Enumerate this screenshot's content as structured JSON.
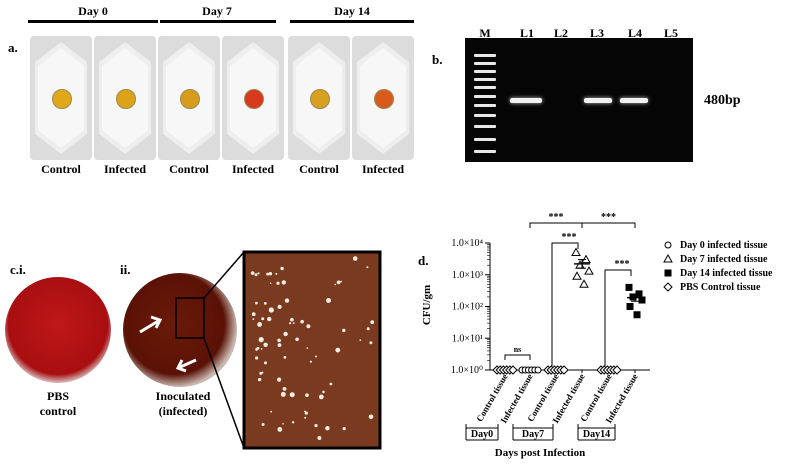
{
  "panel_a": {
    "label": "a.",
    "days": [
      "Day 0",
      "Day 7",
      "Day 14"
    ],
    "dish_labels": [
      "Control",
      "Infected",
      "Control",
      "Infected",
      "Control",
      "Infected"
    ],
    "dish_colors": [
      "#e0a818",
      "#dca21a",
      "#d89c1c",
      "#d83a20",
      "#d8a020",
      "#d85a1c"
    ]
  },
  "panel_b": {
    "label": "b.",
    "lanes": [
      "M",
      "L1",
      "L2",
      "L3",
      "L4",
      "L5"
    ],
    "size_label": "480bp"
  },
  "panel_c": {
    "label_i": "c.i.",
    "label_ii": "ii.",
    "plate1_caption": [
      "PBS",
      "control"
    ],
    "plate2_caption": [
      "Inoculated",
      "(infected)"
    ]
  },
  "panel_d": {
    "label": "d.",
    "footer_days": [
      "Day0",
      "Day7",
      "Day14"
    ],
    "xlabel_main": "Days post Infection"
  },
  "chart_data": {
    "type": "scatter",
    "ylabel": "CFU/gm",
    "yscale": "log",
    "ylim": [
      1,
      10000
    ],
    "yticks": [
      "1.0×10⁰",
      "1.0×10¹",
      "1.0×10²",
      "1.0×10³",
      "1.0×10⁴"
    ],
    "categories": [
      "Control tissue",
      "Infected tissue",
      "Control tissue",
      "Infected tissue",
      "Control tissue",
      "Infected tissue"
    ],
    "groups": [
      "Day0",
      "Day7",
      "Day14"
    ],
    "series": [
      {
        "name": "Day 0 infected tissue",
        "marker": "circle-open",
        "category_index": 1,
        "values": [
          1,
          1,
          1,
          1,
          1,
          1
        ]
      },
      {
        "name": "Day 7 infected tissue",
        "marker": "triangle-open",
        "category_index": 3,
        "values": [
          5000,
          3000,
          2000,
          1300,
          900,
          500
        ],
        "mean": 2200
      },
      {
        "name": "Day 14 infected tissue",
        "marker": "square-filled",
        "category_index": 5,
        "values": [
          400,
          250,
          200,
          160,
          100,
          55
        ],
        "mean": 190
      },
      {
        "name": "PBS Control tissue",
        "marker": "diamond-open",
        "category_indices": [
          0,
          2,
          4
        ],
        "values": [
          1,
          1,
          1,
          1,
          1,
          1
        ]
      }
    ],
    "significance": [
      {
        "from": 0,
        "to": 1,
        "label": "ns"
      },
      {
        "from": 1,
        "to": 3,
        "label": "***"
      },
      {
        "from": 3,
        "to": 5,
        "label": "***"
      },
      {
        "from": 2,
        "to": 3,
        "label": "***"
      },
      {
        "from": 4,
        "to": 5,
        "label": "***"
      }
    ]
  }
}
